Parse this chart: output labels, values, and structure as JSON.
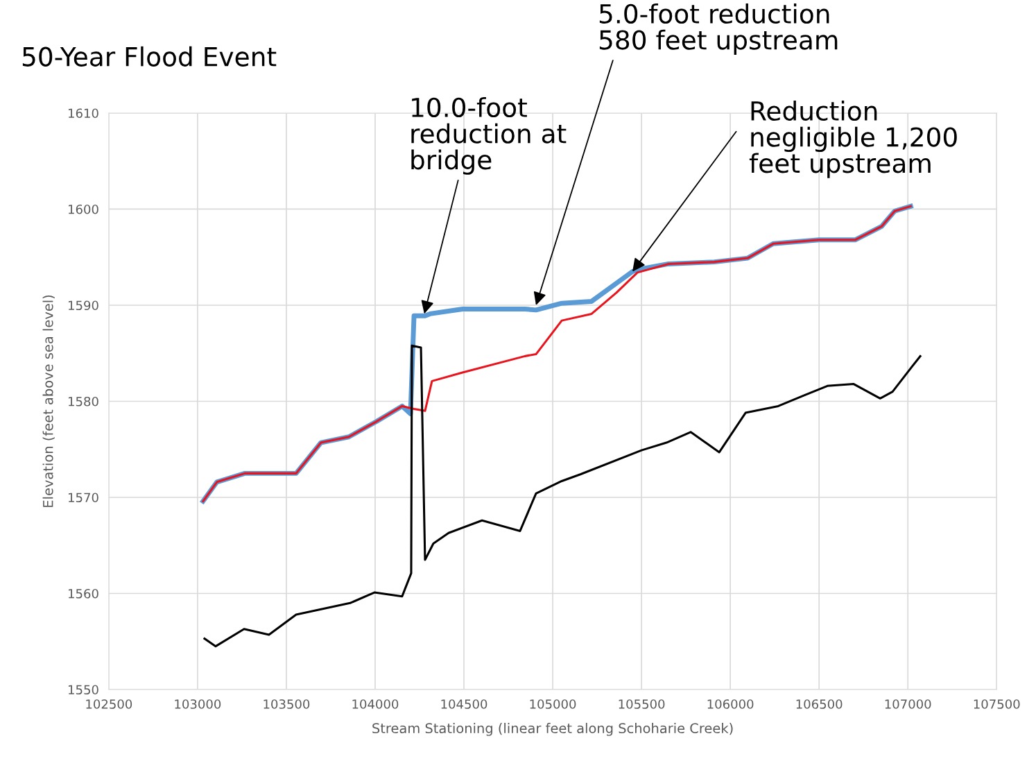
{
  "chart_data": {
    "type": "line",
    "title": "50-Year Flood Event",
    "xlabel": "Stream Stationing (linear feet along Schoharie Creek)",
    "ylabel": "Elevation (feet above sea level)",
    "series": [
      {
        "color": "#e8141e",
        "x": [
          103031,
          103109,
          103266,
          103555,
          103695,
          103852,
          104008,
          104152,
          104219,
          104281,
          104320,
          104492,
          104844,
          104906,
          105051,
          105219,
          105359,
          105477,
          105652,
          105910,
          106098,
          106242,
          106500,
          106703,
          106852,
          106926,
          107016
        ],
        "values": [
          1569.6,
          1571.6,
          1572.5,
          1572.5,
          1575.7,
          1576.3,
          1577.9,
          1579.5,
          1579.2,
          1579.0,
          1582.1,
          1583.0,
          1584.7,
          1584.9,
          1588.4,
          1589.1,
          1591.3,
          1593.4,
          1594.3,
          1594.5,
          1594.9,
          1596.4,
          1596.8,
          1596.8,
          1598.2,
          1599.8,
          1600.3
        ]
      },
      {
        "color": "#5b9bd5",
        "x": [
          103031,
          103109,
          103266,
          103555,
          103695,
          103852,
          104008,
          104152,
          104199,
          104219,
          104281,
          104309,
          104492,
          104844,
          104906,
          105051,
          105219,
          105449,
          105477,
          105652,
          105910,
          106098,
          106242,
          106500,
          106703,
          106852,
          106926,
          107016
        ],
        "values": [
          1569.6,
          1571.6,
          1572.5,
          1572.5,
          1575.7,
          1576.3,
          1577.9,
          1579.5,
          1578.7,
          1588.9,
          1588.9,
          1589.1,
          1589.6,
          1589.6,
          1589.5,
          1590.2,
          1590.4,
          1593.5,
          1593.7,
          1594.3,
          1594.5,
          1594.9,
          1596.4,
          1596.8,
          1596.8,
          1598.2,
          1599.8,
          1600.3
        ]
      },
      {
        "color": "#000000",
        "x": [
          103039,
          103102,
          103262,
          103402,
          103555,
          103859,
          103996,
          104152,
          104203,
          104207,
          104258,
          104281,
          104328,
          104414,
          104602,
          104816,
          104906,
          105051,
          105156,
          105500,
          105641,
          105777,
          105938,
          106086,
          106270,
          106414,
          106547,
          106695,
          106844,
          106914,
          107023,
          107070
        ],
        "values": [
          1555.3,
          1554.5,
          1556.3,
          1555.7,
          1557.8,
          1559.0,
          1560.1,
          1559.7,
          1562.1,
          1585.8,
          1585.6,
          1563.5,
          1565.2,
          1566.3,
          1567.6,
          1566.5,
          1570.4,
          1571.7,
          1572.4,
          1574.9,
          1575.7,
          1576.8,
          1574.7,
          1578.8,
          1579.5,
          1580.6,
          1581.6,
          1581.8,
          1580.3,
          1581.0,
          1583.6,
          1584.7
        ]
      }
    ],
    "xlim": [
      102500,
      107500
    ],
    "xticks": [
      102500,
      103000,
      103500,
      104000,
      104500,
      105000,
      105500,
      106000,
      106500,
      107000,
      107500
    ],
    "ylim": [
      1550,
      1610
    ],
    "yticks": [
      1550,
      1560,
      1570,
      1580,
      1590,
      1600,
      1610
    ],
    "grid": true,
    "legend": false,
    "marker": "none",
    "line_style": "solid",
    "annotations": [
      {
        "text": "10.0-foot\nreduction at\nbridge",
        "x": 104277,
        "y": 1589.1
      },
      {
        "text": "5.0-foot reduction\n580 feet upstream",
        "x": 104906,
        "y": 1590.0
      },
      {
        "text": "Reduction\nnegligible 1,200\nfeet upstream",
        "x": 105449,
        "y": 1593.5
      }
    ]
  }
}
